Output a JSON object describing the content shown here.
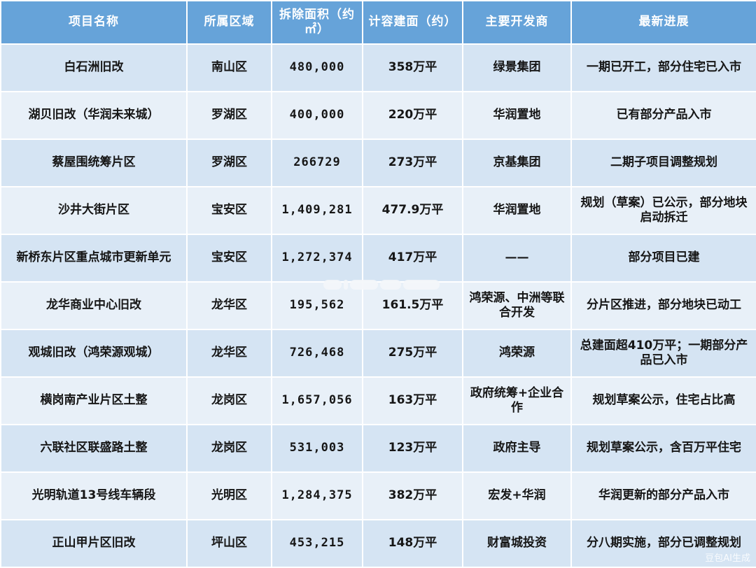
{
  "header": [
    "项目名称",
    "所属区域",
    "拆除面积（约㎡）",
    "计容建面（约）",
    "主要开发商",
    "最新进展"
  ],
  "rows": [
    {
      "name": "白石洲旧改",
      "district": "南山区",
      "area": "480,000",
      "gfa": "358万平",
      "developer": "绿景集团",
      "progress": "一期已开工，部分住宅已入市"
    },
    {
      "name": "湖贝旧改（华润未来城）",
      "district": "罗湖区",
      "area": "400,000",
      "gfa": "220万平",
      "developer": "华润置地",
      "progress": "已有部分产品入市"
    },
    {
      "name": "蔡屋围统筹片区",
      "district": "罗湖区",
      "area": "266729",
      "gfa": "273万平",
      "developer": "京基集团",
      "progress": "二期子项目调整规划"
    },
    {
      "name": "沙井大街片区",
      "district": "宝安区",
      "area": "1,409,281",
      "gfa": "477.9万平",
      "developer": "华润置地",
      "progress": "规划（草案）已公示，部分地块启动拆迁"
    },
    {
      "name": "新桥东片区重点城市更新单元",
      "district": "宝安区",
      "area": "1,272,374",
      "gfa": "417万平",
      "developer": "——",
      "progress": "部分项目已建"
    },
    {
      "name": "龙华商业中心旧改",
      "district": "龙华区",
      "area": "195,562",
      "gfa": "161.5万平",
      "developer": "鸿荣源、中洲等联合开发",
      "progress": "分片区推进，部分地块已动工"
    },
    {
      "name": "观城旧改（鸿荣源观城）",
      "district": "龙华区",
      "area": "726,468",
      "gfa": "275万平",
      "developer": "鸿荣源",
      "progress": "总建面超410万平；一期部分产品已入市"
    },
    {
      "name": "横岗南产业片区土整",
      "district": "龙岗区",
      "area": "1,657,056",
      "gfa": "163万平",
      "developer": "政府统筹+企业合作",
      "progress": "规划草案公示，住宅占比高"
    },
    {
      "name": "六联社区联盛路土整",
      "district": "龙岗区",
      "area": "531,003",
      "gfa": "123万平",
      "developer": "政府主导",
      "progress": "规划草案公示，含百万平住宅"
    },
    {
      "name": "光明轨道13号线车辆段",
      "district": "光明区",
      "area": "1,284,375",
      "gfa": "382万平",
      "developer": "宏发+华润",
      "progress": "华润更新的部分产品入市"
    },
    {
      "name": "正山甲片区旧改",
      "district": "坪山区",
      "area": "453,215",
      "gfa": "148万平",
      "developer": "财富城投资",
      "progress": "分八期实施，部分已调整规划"
    }
  ],
  "watermark": "豆包AI生成",
  "colors": {
    "header_bg": "#66a3d9",
    "row_odd": "#d5e4f3",
    "row_even": "#e8f0f8",
    "text": "#161616"
  }
}
